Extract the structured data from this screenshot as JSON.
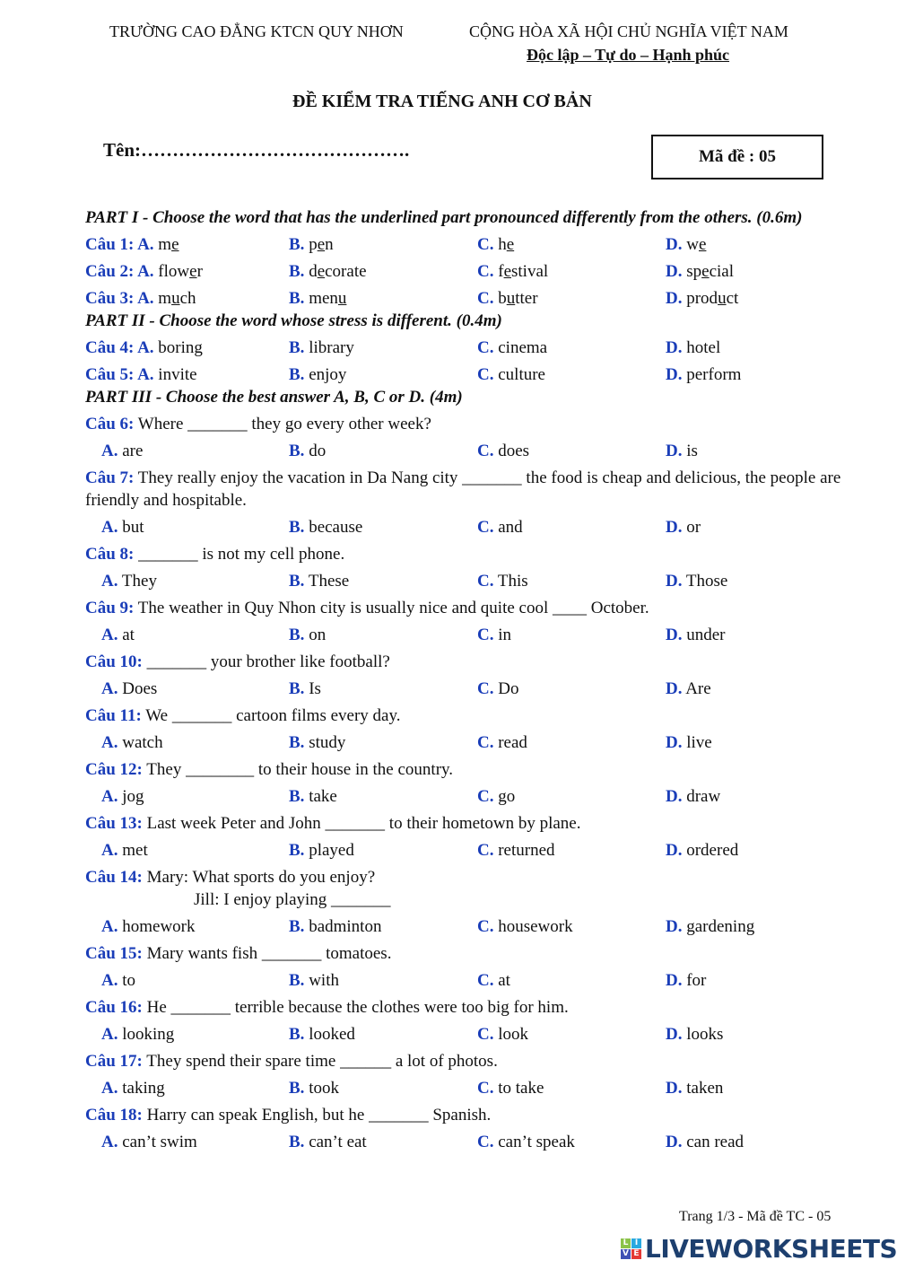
{
  "header": {
    "school": "TRƯỜNG CAO ĐẲNG KTCN QUY NHƠN",
    "nation": "CỘNG HÒA XÃ HỘI CHỦ NGHĨA VIỆT NAM",
    "motto": "Độc lập – Tự do – Hạnh phúc",
    "title": "ĐỀ KIỂM TRA TIẾNG ANH CƠ BẢN",
    "name_field": "Tên:…………………………………….",
    "code": "Mã đề : 05"
  },
  "colors": {
    "label": "#1a3db8"
  },
  "items": [
    {
      "type": "part",
      "text": "PART I - Choose the word that has the underlined part pronounced differently from the others. (0.6m)"
    },
    {
      "type": "pron",
      "label": "Câu 1: A.",
      "opts": [
        [
          "m",
          "e",
          ""
        ],
        [
          "p",
          "e",
          "n"
        ],
        [
          "h",
          "e",
          ""
        ],
        [
          "w",
          "e",
          ""
        ]
      ]
    },
    {
      "type": "pron",
      "label": "Câu 2: A.",
      "opts": [
        [
          "flow",
          "e",
          "r"
        ],
        [
          "d",
          "e",
          "corate"
        ],
        [
          "f",
          "e",
          "stival"
        ],
        [
          "sp",
          "e",
          "cial"
        ]
      ]
    },
    {
      "type": "pron",
      "label": "Câu 3: A.",
      "opts": [
        [
          "m",
          "u",
          "ch"
        ],
        [
          "men",
          "u",
          ""
        ],
        [
          "b",
          "u",
          "tter"
        ],
        [
          "prod",
          "u",
          "ct"
        ]
      ]
    },
    {
      "type": "part",
      "text": "PART II - Choose the word whose stress is different. (0.4m)"
    },
    {
      "type": "pron",
      "label": "Câu 4: A.",
      "opts": [
        [
          "boring",
          "",
          ""
        ],
        [
          "library",
          "",
          ""
        ],
        [
          "cinema",
          "",
          ""
        ],
        [
          "hotel",
          "",
          ""
        ]
      ]
    },
    {
      "type": "pron",
      "label": "Câu 5: A.",
      "opts": [
        [
          "invite",
          "",
          ""
        ],
        [
          "enjoy",
          "",
          ""
        ],
        [
          "culture",
          "",
          ""
        ],
        [
          "perform",
          "",
          ""
        ]
      ]
    },
    {
      "type": "part",
      "text": "PART III - Choose the best answer A, B, C or D. (4m)"
    },
    {
      "type": "q",
      "label": "Câu 6:",
      "text": " Where _______ they go every other week?",
      "opts": [
        "are",
        "do",
        "does",
        "is"
      ]
    },
    {
      "type": "q",
      "label": "Câu 7:",
      "text": " They really enjoy the vacation in Da Nang city _______ the food is cheap and delicious, the people are friendly and hospitable.",
      "opts": [
        "but",
        "because",
        "and",
        "or"
      ]
    },
    {
      "type": "q",
      "label": "Câu 8:",
      "text": " _______ is not my cell phone.",
      "opts": [
        "They",
        "These",
        "This",
        "Those"
      ]
    },
    {
      "type": "q",
      "label": "Câu 9:",
      "text": " The weather in Quy Nhon city is usually nice and quite cool ____ October.",
      "opts": [
        "at",
        "on",
        "in",
        "under"
      ]
    },
    {
      "type": "q",
      "label": "Câu 10:",
      "text": " _______ your brother like football?",
      "opts": [
        "Does",
        "Is",
        "Do",
        "Are"
      ]
    },
    {
      "type": "q",
      "label": "Câu 11:",
      "text": " We _______ cartoon films every day.",
      "opts": [
        "watch",
        "study",
        "read",
        "live"
      ]
    },
    {
      "type": "q",
      "label": "Câu 12:",
      "text": " They ________ to their house in the country.",
      "opts": [
        "jog",
        "take",
        "go",
        "draw"
      ]
    },
    {
      "type": "q",
      "label": "Câu 13:",
      "text": " Last week Peter and John _______ to their hometown by plane.",
      "opts": [
        "met",
        "played",
        "returned",
        "ordered"
      ]
    },
    {
      "type": "q",
      "label": "Câu 14:",
      "text": " Mary: What sports do you enjoy?",
      "text2": "Jill: I enjoy  playing _______",
      "opts": [
        "homework",
        "badminton",
        "housework",
        "gardening"
      ]
    },
    {
      "type": "q",
      "label": "Câu 15:",
      "text": " Mary wants fish _______ tomatoes.",
      "opts": [
        "to",
        "with",
        "at",
        "for"
      ]
    },
    {
      "type": "q",
      "label": "Câu 16:",
      "text": " He _______ terrible because the clothes were too big for him.",
      "opts": [
        "looking",
        "looked",
        "look",
        "looks"
      ]
    },
    {
      "type": "q",
      "label": "Câu 17:",
      "text": " They spend their spare time ______ a lot of photos.",
      "opts": [
        "taking",
        "took",
        "to take",
        "taken"
      ]
    },
    {
      "type": "q",
      "label": "Câu 18:",
      "text": " Harry can speak English, but he _______ Spanish.",
      "opts": [
        "can’t swim",
        "can’t eat",
        "can’t speak",
        "can read"
      ]
    }
  ],
  "letters": [
    "A.",
    "B.",
    "C.",
    "D."
  ],
  "footer": {
    "page": "Trang 1/3 - Mã đề TC - 05",
    "logo": "LIVEWORKSHEETS",
    "logo_tiles": [
      "L",
      "I",
      "V",
      "E"
    ]
  }
}
